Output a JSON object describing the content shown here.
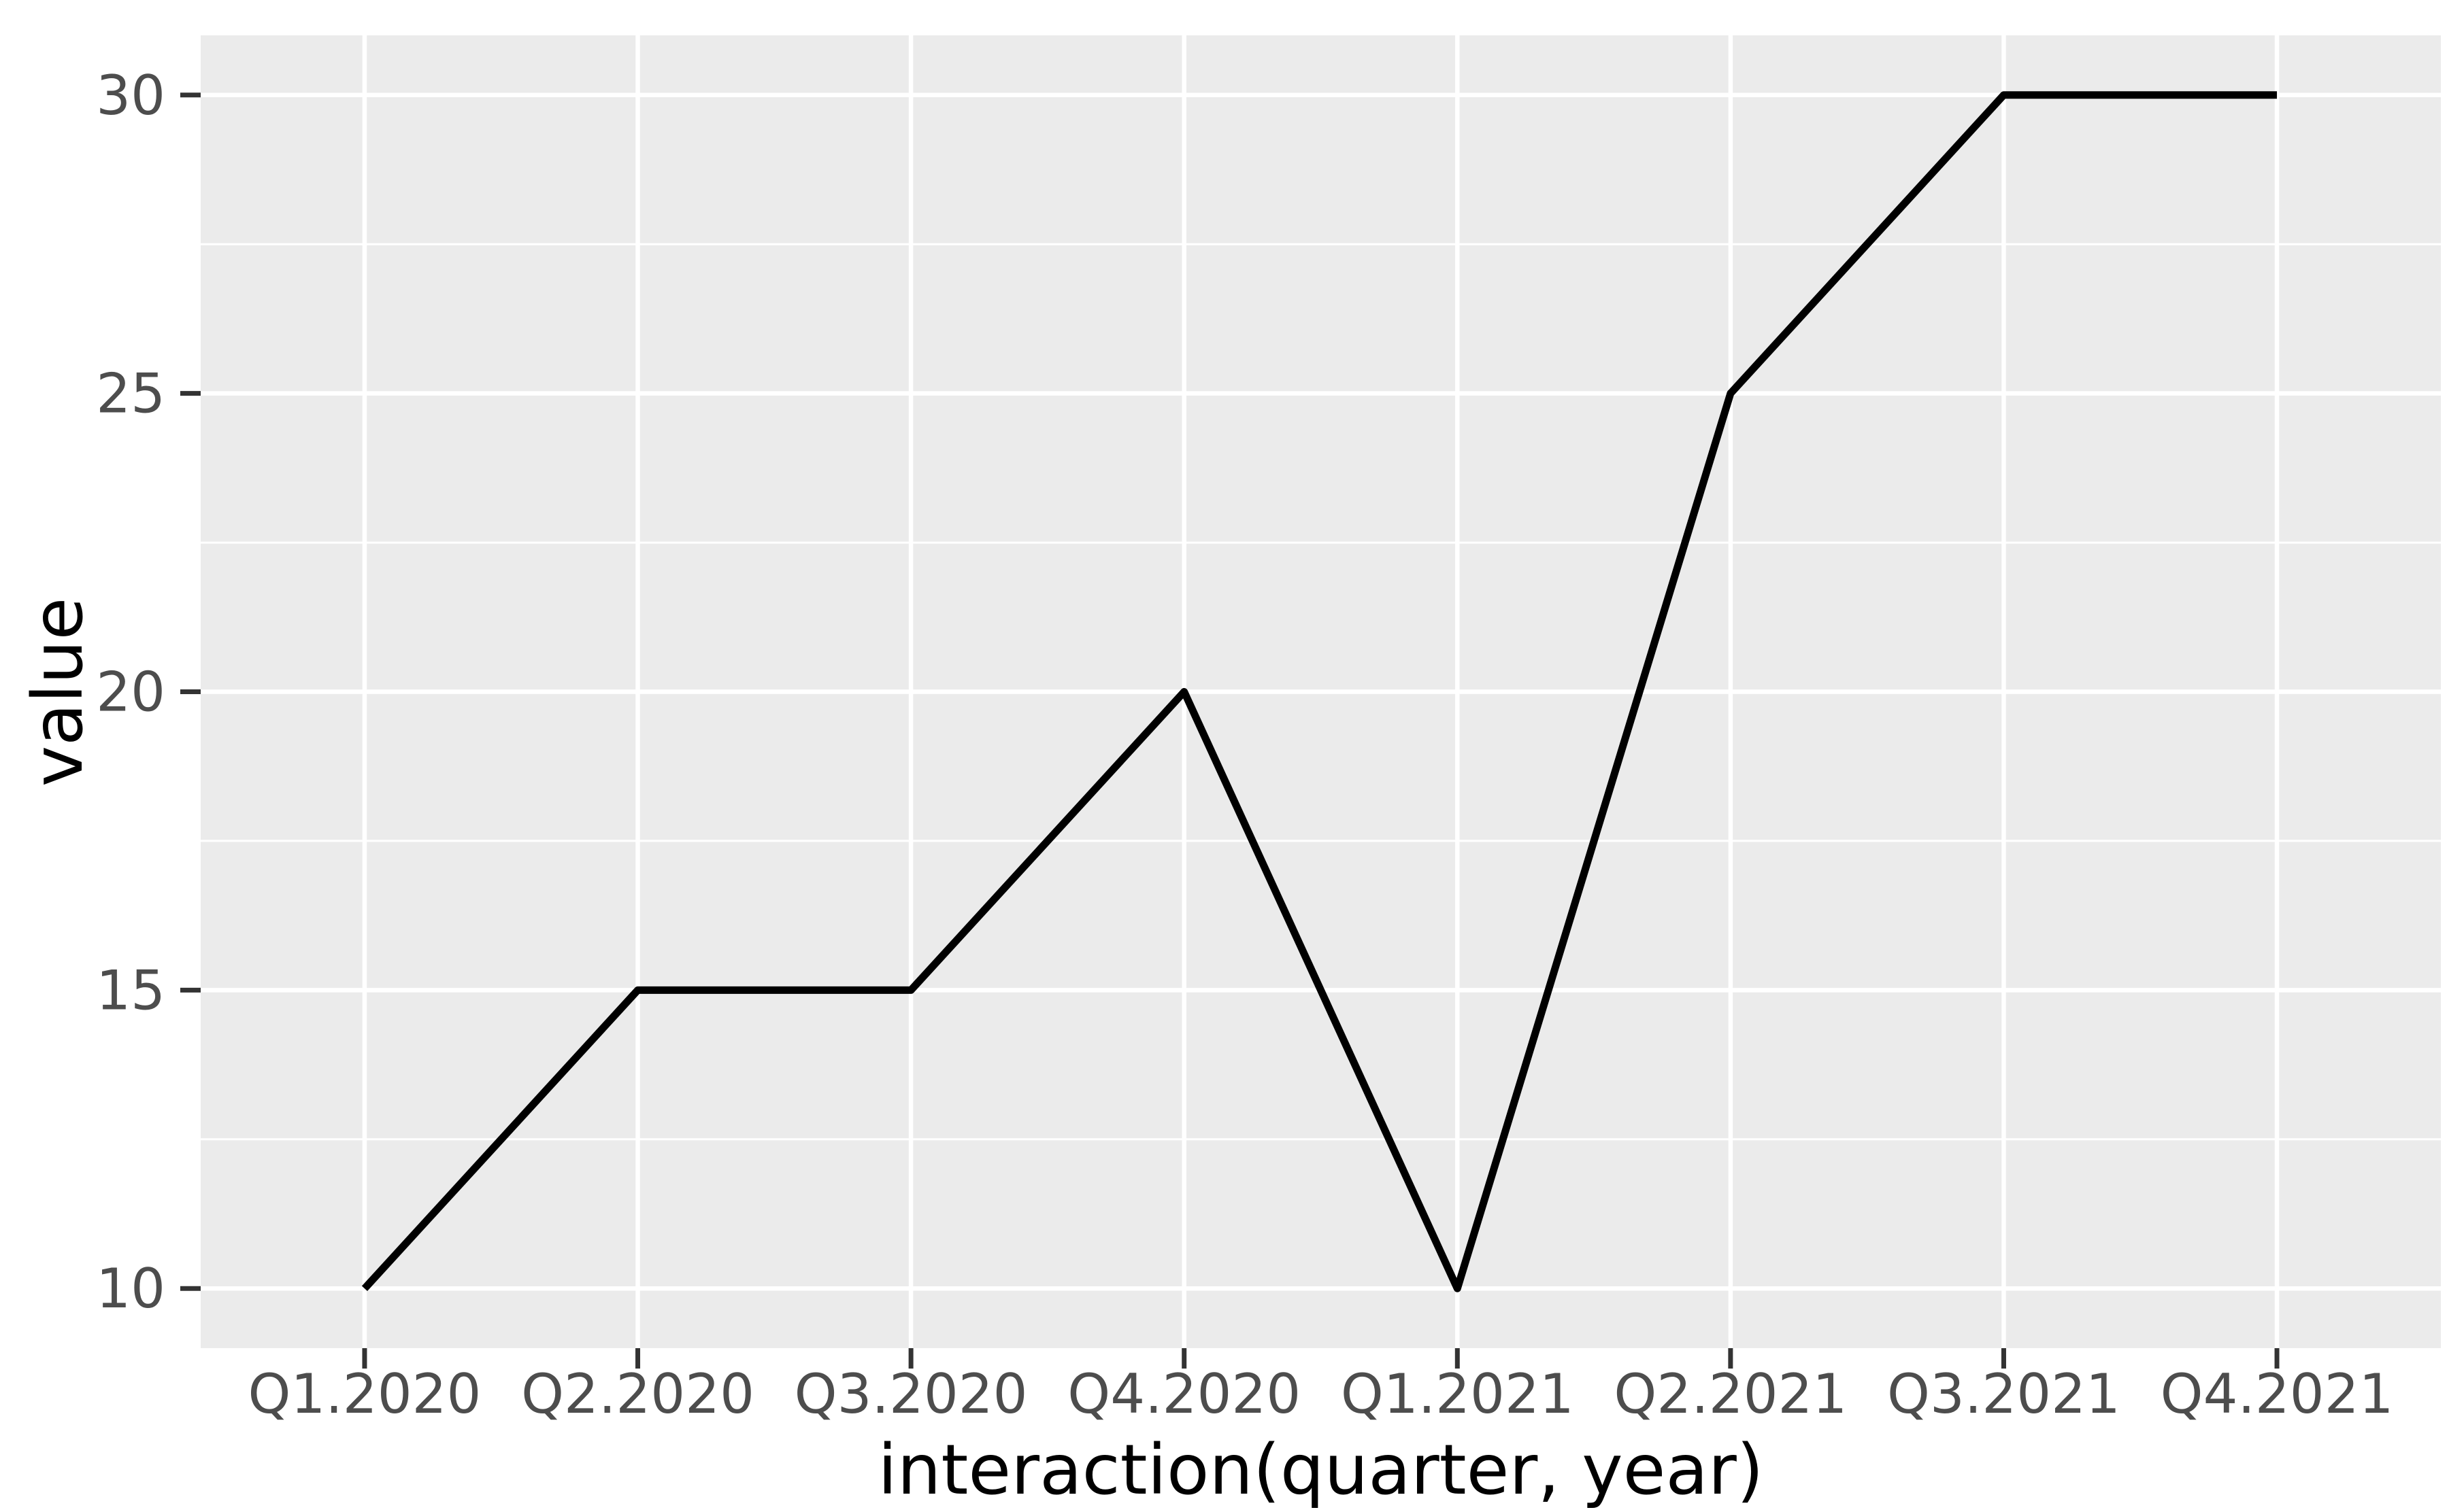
{
  "figure": {
    "background": "#FFFFFF",
    "panel_background": "#EBEBEB",
    "grid_major_color": "#FFFFFF",
    "grid_minor_color": "#FFFFFF",
    "axis_tick_color": "#333333",
    "tick_label_color": "#4D4D4D",
    "axis_title_color": "#000000",
    "line_color": "#000000"
  },
  "chart_data": {
    "type": "line",
    "title": "",
    "xlabel": "interaction(quarter, year)",
    "ylabel": "value",
    "categories": [
      "Q1.2020",
      "Q2.2020",
      "Q3.2020",
      "Q4.2020",
      "Q1.2021",
      "Q2.2021",
      "Q3.2021",
      "Q4.2021"
    ],
    "values": [
      10,
      15,
      15,
      20,
      10,
      25,
      30,
      30
    ],
    "series": [
      {
        "name": "value",
        "values": [
          10,
          15,
          15,
          20,
          10,
          25,
          30,
          30
        ]
      }
    ],
    "y_ticks": [
      10,
      15,
      20,
      25,
      30
    ],
    "y_minor_ticks": [
      12.5,
      17.5,
      22.5,
      27.5
    ],
    "ylim": [
      9,
      31
    ],
    "grid": "on",
    "legend": "none",
    "style": "ggplot2-grey-theme"
  }
}
